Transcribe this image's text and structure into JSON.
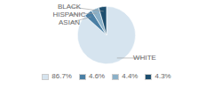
{
  "chart_data": {
    "type": "pie",
    "categories": [
      "WHITE",
      "ASIAN",
      "HISPANIC",
      "BLACK"
    ],
    "values": [
      86.7,
      4.6,
      4.4,
      4.3
    ],
    "value_labels": [
      "86.7%",
      "4.6%",
      "4.4%",
      "4.3%"
    ],
    "colors": [
      "#d6e4ef",
      "#4a7fa5",
      "#8ab0c8",
      "#1d4e6e"
    ],
    "legend": "bottom"
  }
}
